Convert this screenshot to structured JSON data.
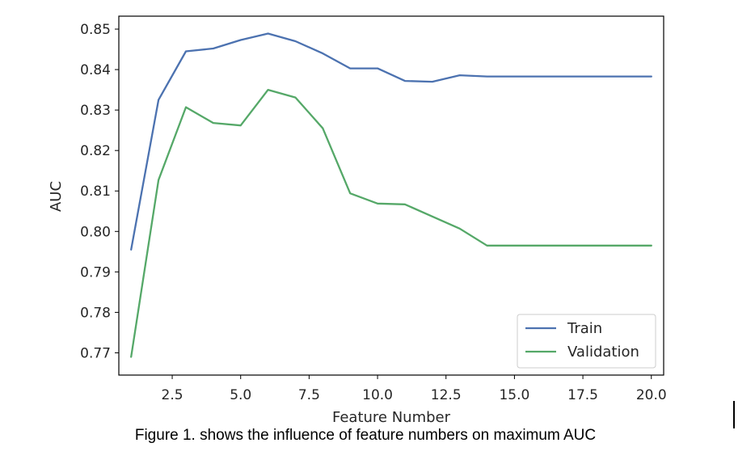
{
  "chart_data": {
    "type": "line",
    "xlabel": "Feature Number",
    "ylabel": "AUC",
    "xlim": [
      0.55,
      20.45
    ],
    "ylim": [
      0.7645,
      0.8532
    ],
    "xticks": [
      "2.5",
      "5.0",
      "7.5",
      "10.0",
      "12.5",
      "15.0",
      "17.5",
      "20.0"
    ],
    "xtick_values": [
      2.5,
      5.0,
      7.5,
      10.0,
      12.5,
      15.0,
      17.5,
      20.0
    ],
    "yticks": [
      "0.77",
      "0.78",
      "0.79",
      "0.80",
      "0.81",
      "0.82",
      "0.83",
      "0.84",
      "0.85"
    ],
    "ytick_values": [
      0.77,
      0.78,
      0.79,
      0.8,
      0.81,
      0.82,
      0.83,
      0.84,
      0.85
    ],
    "x": [
      1,
      2,
      3,
      4,
      5,
      6,
      7,
      8,
      9,
      10,
      11,
      12,
      13,
      14,
      15,
      16,
      17,
      18,
      19,
      20
    ],
    "series": [
      {
        "name": "Train",
        "color": "#4c72b0",
        "values": [
          0.7955,
          0.8325,
          0.8445,
          0.8452,
          0.8473,
          0.8489,
          0.847,
          0.844,
          0.8403,
          0.8403,
          0.8372,
          0.837,
          0.8386,
          0.8383,
          0.8383,
          0.8383,
          0.8383,
          0.8383,
          0.8383,
          0.8383
        ]
      },
      {
        "name": "Validation",
        "color": "#55a868",
        "values": [
          0.769,
          0.8127,
          0.8307,
          0.8268,
          0.8262,
          0.835,
          0.8331,
          0.8255,
          0.8094,
          0.8069,
          0.8067,
          0.8037,
          0.8007,
          0.7965,
          0.7965,
          0.7965,
          0.7965,
          0.7965,
          0.7965,
          0.7965
        ]
      }
    ],
    "grid": false,
    "legend_position": "bottom-right"
  },
  "caption": "Figure 1. shows the influence of feature numbers on maximum AUC"
}
